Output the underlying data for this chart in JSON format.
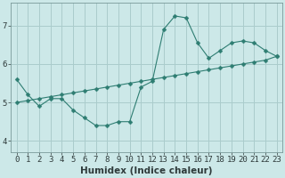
{
  "line1_x": [
    0,
    1,
    2,
    3,
    4,
    5,
    6,
    7,
    8,
    9,
    10,
    11,
    12,
    13,
    14,
    15,
    16,
    17,
    18,
    19,
    20,
    21,
    22,
    23
  ],
  "line1_y": [
    5.6,
    5.2,
    4.9,
    5.1,
    5.1,
    4.8,
    4.6,
    4.4,
    4.4,
    4.5,
    4.5,
    5.4,
    5.55,
    6.9,
    7.25,
    7.2,
    6.55,
    6.15,
    6.35,
    6.55,
    6.6,
    6.55,
    6.35,
    6.2
  ],
  "line2_x": [
    0,
    1,
    2,
    3,
    4,
    5,
    6,
    7,
    8,
    9,
    10,
    11,
    12,
    13,
    14,
    15,
    16,
    17,
    18,
    19,
    20,
    21,
    22,
    23
  ],
  "line2_y": [
    5.0,
    5.05,
    5.1,
    5.15,
    5.2,
    5.25,
    5.3,
    5.35,
    5.4,
    5.45,
    5.5,
    5.55,
    5.6,
    5.65,
    5.7,
    5.75,
    5.8,
    5.85,
    5.9,
    5.95,
    6.0,
    6.05,
    6.1,
    6.2
  ],
  "line_color": "#2e7d72",
  "bg_color": "#cce8e8",
  "grid_color": "#aacccc",
  "xlabel": "Humidex (Indice chaleur)",
  "yticks": [
    4,
    5,
    6,
    7
  ],
  "xticks": [
    0,
    1,
    2,
    3,
    4,
    5,
    6,
    7,
    8,
    9,
    10,
    11,
    12,
    13,
    14,
    15,
    16,
    17,
    18,
    19,
    20,
    21,
    22,
    23
  ],
  "ylim": [
    3.7,
    7.6
  ],
  "xlim": [
    -0.5,
    23.5
  ],
  "xlabel_fontsize": 7.5,
  "tick_fontsize": 6.5,
  "marker": "D",
  "marker_size": 2.5,
  "linewidth": 0.8
}
